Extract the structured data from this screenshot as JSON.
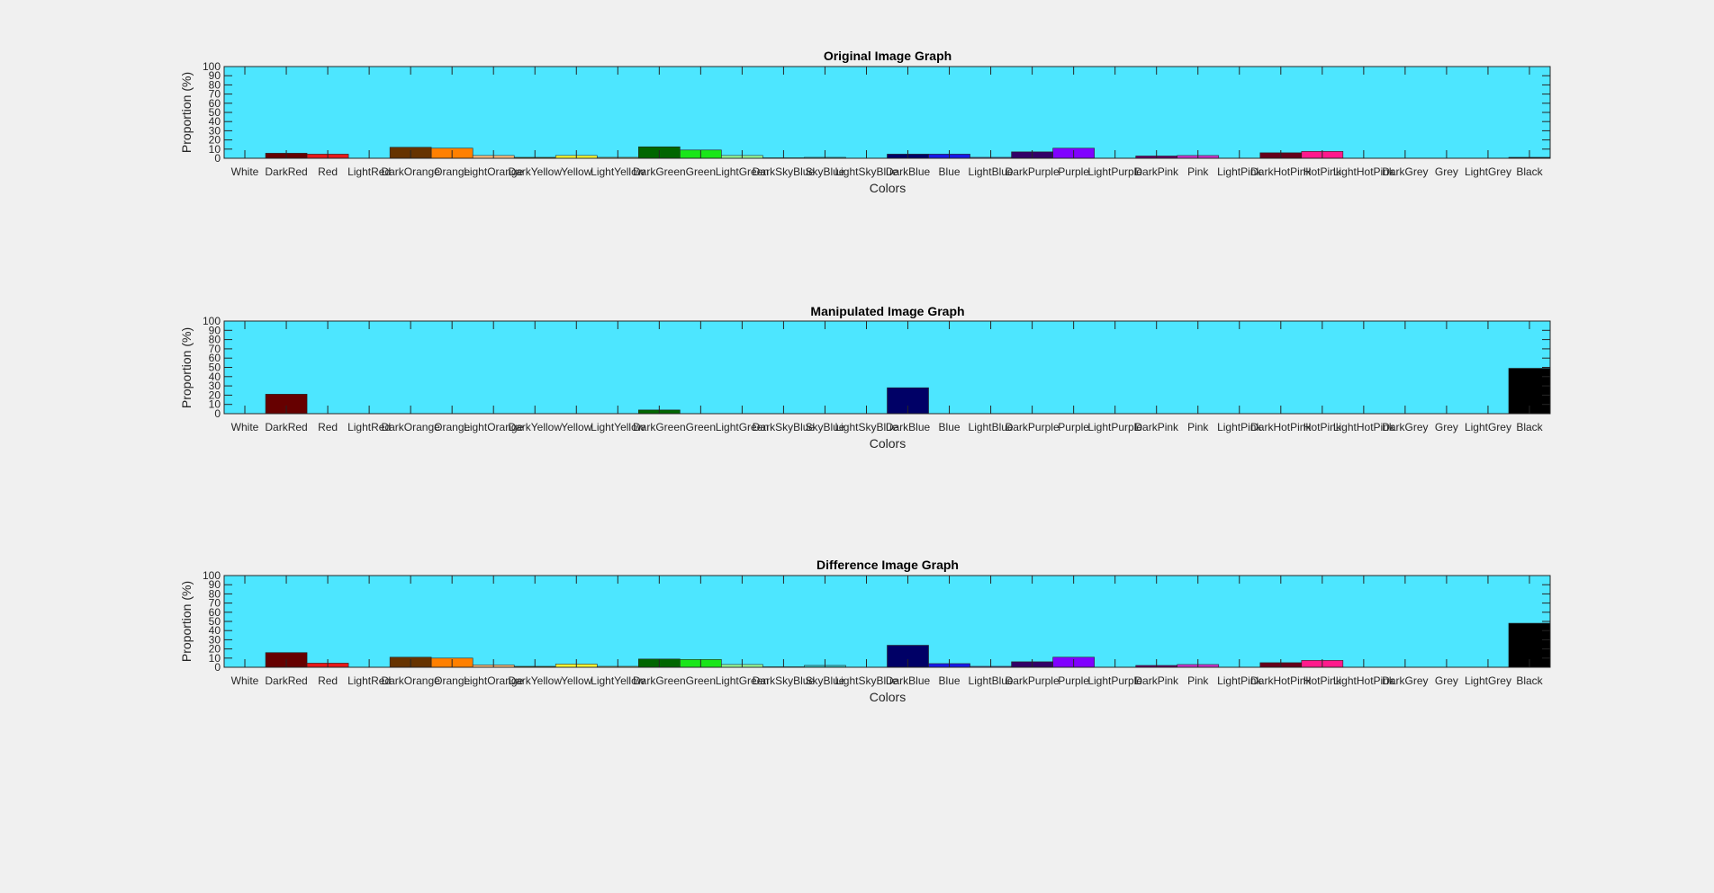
{
  "figure": {
    "background": "#f0f0f0",
    "axes_background": "#4de6ff"
  },
  "categories": [
    "White",
    "DarkRed",
    "Red",
    "LightRed",
    "DarkOrange",
    "Orange",
    "LightOrange",
    "DarkYellow",
    "Yellow",
    "LightYellow",
    "DarkGreen",
    "Green",
    "LightGreen",
    "DarkSkyBlue",
    "SkyBlue",
    "LightSkyBlue",
    "DarkBlue",
    "Blue",
    "LightBlue",
    "DarkPurple",
    "Purple",
    "LightPurple",
    "DarkPink",
    "Pink",
    "LightPink",
    "DarkHotPink",
    "HotPink",
    "LightHotPink",
    "DarkGrey",
    "Grey",
    "LightGrey",
    "Black"
  ],
  "bar_colors": [
    "#ffffff",
    "#660000",
    "#e61919",
    "#ff8080",
    "#663300",
    "#ff8000",
    "#ffc080",
    "#666600",
    "#ffff33",
    "#ffff99",
    "#006600",
    "#19e619",
    "#99ff99",
    "#006666",
    "#33cccc",
    "#99ffff",
    "#000066",
    "#1919e6",
    "#8080ff",
    "#330066",
    "#8000ff",
    "#cc99ff",
    "#660066",
    "#cc33cc",
    "#ff99ff",
    "#66001a",
    "#ff1a8c",
    "#ff99cc",
    "#333333",
    "#808080",
    "#cccccc",
    "#000000"
  ],
  "chart_data": [
    {
      "type": "bar",
      "title": "Original Image Graph",
      "xlabel": "Colors",
      "ylabel": "Proportion (%)",
      "ylim": [
        0,
        100
      ],
      "yticks": [
        0,
        10,
        20,
        30,
        40,
        50,
        60,
        70,
        80,
        90,
        100
      ],
      "grid": false,
      "values": [
        0,
        5.5,
        4.5,
        0,
        12,
        11,
        3,
        1,
        3,
        1,
        12.5,
        9,
        3,
        0.5,
        1,
        0,
        4.5,
        4.5,
        1,
        7,
        11,
        0,
        2.5,
        3,
        0,
        6,
        7.5,
        0,
        0,
        0,
        0,
        1
      ]
    },
    {
      "type": "bar",
      "title": "Manipulated Image Graph",
      "xlabel": "Colors",
      "ylabel": "Proportion (%)",
      "ylim": [
        0,
        100
      ],
      "yticks": [
        0,
        10,
        20,
        30,
        40,
        50,
        60,
        70,
        80,
        90,
        100
      ],
      "grid": false,
      "values": [
        0,
        21,
        0,
        0,
        0,
        0,
        0,
        0,
        0,
        0,
        4,
        0,
        0,
        0,
        0,
        0,
        28,
        0,
        0,
        0,
        0,
        0,
        0,
        0,
        0,
        0,
        0,
        0,
        0,
        0,
        0,
        49
      ]
    },
    {
      "type": "bar",
      "title": "Difference Image Graph",
      "xlabel": "Colors",
      "ylabel": "Proportion (%)",
      "ylim": [
        0,
        100
      ],
      "yticks": [
        0,
        10,
        20,
        30,
        40,
        50,
        60,
        70,
        80,
        90,
        100
      ],
      "grid": false,
      "values": [
        0,
        16,
        4.5,
        0,
        11,
        10,
        2.5,
        1,
        3.5,
        1,
        9,
        8.5,
        3,
        0.5,
        2,
        0,
        24,
        4,
        1,
        6,
        11,
        0,
        2,
        3,
        0,
        5,
        7.5,
        0,
        0,
        0,
        0,
        48
      ]
    }
  ]
}
